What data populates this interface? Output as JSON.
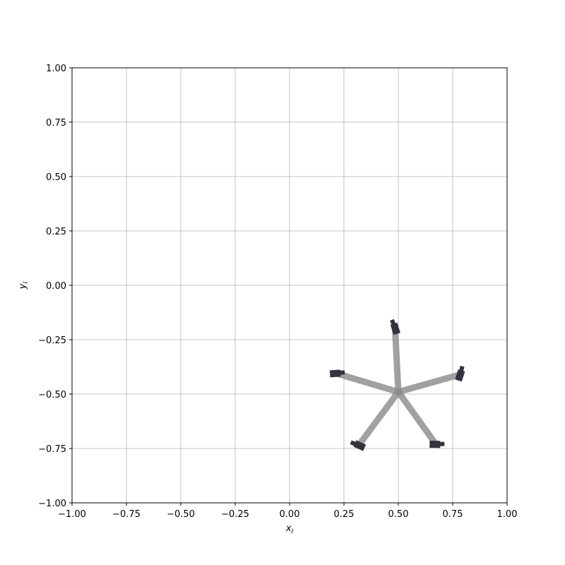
{
  "chart_data": {
    "type": "scatter",
    "title": "",
    "xlabel": "x",
    "xlabel_sub": "I",
    "ylabel": "y",
    "ylabel_sub": "I",
    "xlim": [
      -1.0,
      1.0
    ],
    "ylim": [
      -1.0,
      1.0
    ],
    "grid": true,
    "xticks": [
      -1.0,
      -0.75,
      -0.5,
      -0.25,
      0.0,
      0.25,
      0.5,
      0.75,
      1.0
    ],
    "yticks": [
      -1.0,
      -0.75,
      -0.5,
      -0.25,
      0.0,
      0.25,
      0.5,
      0.75,
      1.0
    ],
    "xtick_labels": [
      "−1.00",
      "−0.75",
      "−0.50",
      "−0.25",
      "0.00",
      "0.25",
      "0.50",
      "0.75",
      "1.00"
    ],
    "ytick_labels": [
      "−1.00",
      "−0.75",
      "−0.50",
      "−0.25",
      "0.00",
      "0.25",
      "0.50",
      "0.75",
      "1.00"
    ],
    "hub": {
      "x": 0.5,
      "y": -0.49
    },
    "arms": [
      {
        "x": 0.485,
        "y": -0.195,
        "angle_deg": 112
      },
      {
        "x": 0.215,
        "y": -0.405,
        "angle_deg": 8
      },
      {
        "x": 0.318,
        "y": -0.735,
        "angle_deg": 160
      },
      {
        "x": 0.673,
        "y": -0.731,
        "angle_deg": 3
      },
      {
        "x": 0.785,
        "y": -0.41,
        "angle_deg": 76
      }
    ],
    "colors": {
      "arm": "#8c8c8c",
      "rotor": "#33333f",
      "grid": "#b0b0b0",
      "frame": "#000000"
    }
  }
}
